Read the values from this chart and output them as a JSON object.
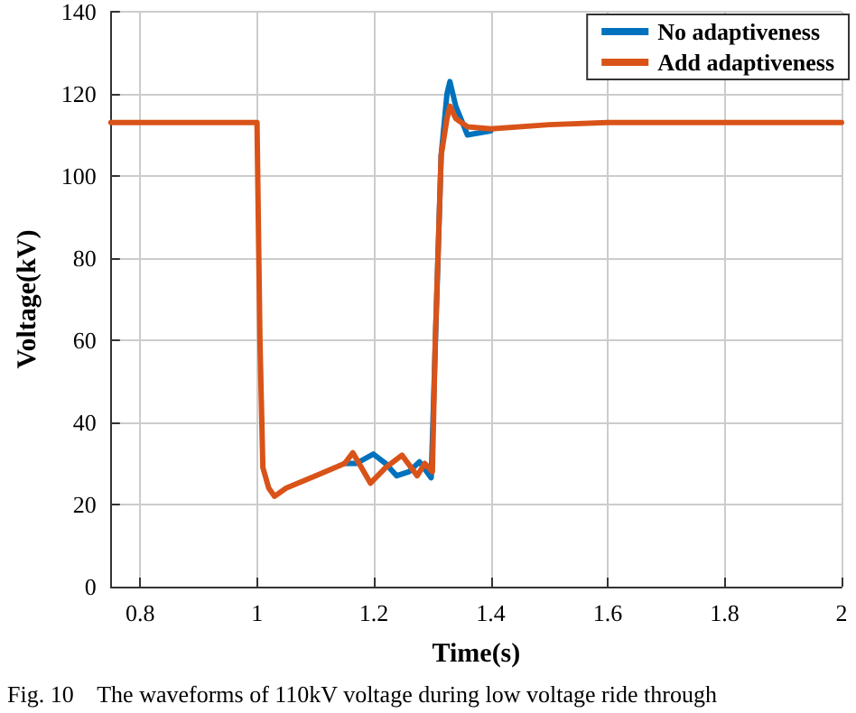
{
  "chart_data": {
    "type": "line",
    "xlabel": "Time(s)",
    "ylabel": "Voltage(kV)",
    "annotations": [
      "Fig. 10    The waveforms of 110kV voltage during low voltage ride through"
    ],
    "xlim": [
      0.75,
      2
    ],
    "xticks": [
      0.8,
      1,
      1.2,
      1.4,
      1.6,
      1.8,
      2
    ],
    "ylim": [
      0,
      140
    ],
    "yticks": [
      0,
      20,
      40,
      60,
      80,
      100,
      120,
      140
    ],
    "grid": true,
    "legend": "top right",
    "marker": "none",
    "line_style": "solid",
    "series": [
      {
        "name": "No adaptiveness",
        "color": "#0072bd",
        "x": [
          1.15,
          1.17,
          1.199,
          1.22,
          1.239,
          1.26,
          1.278,
          1.298,
          1.315,
          1.325,
          1.33,
          1.34,
          1.36,
          1.4
        ],
        "values": [
          30,
          30,
          32.3,
          30,
          27,
          28,
          30.4,
          26.5,
          105,
          120,
          123,
          117,
          110,
          111
        ]
      },
      {
        "name": "Add adaptiveness",
        "color": "#d95319",
        "x": [
          0.75,
          1.0,
          1.005,
          1.01,
          1.02,
          1.03,
          1.05,
          1.1,
          1.15,
          1.164,
          1.194,
          1.22,
          1.248,
          1.274,
          1.287,
          1.3,
          1.305,
          1.315,
          1.325,
          1.33,
          1.34,
          1.36,
          1.4,
          1.5,
          1.6,
          1.8,
          2.0
        ],
        "values": [
          113,
          113,
          60,
          29,
          24,
          22,
          24,
          27,
          30,
          32.6,
          25.2,
          29,
          32,
          27,
          30,
          28,
          60,
          105,
          114,
          117,
          114,
          112,
          111.5,
          112.5,
          113,
          113,
          113
        ]
      }
    ]
  }
}
